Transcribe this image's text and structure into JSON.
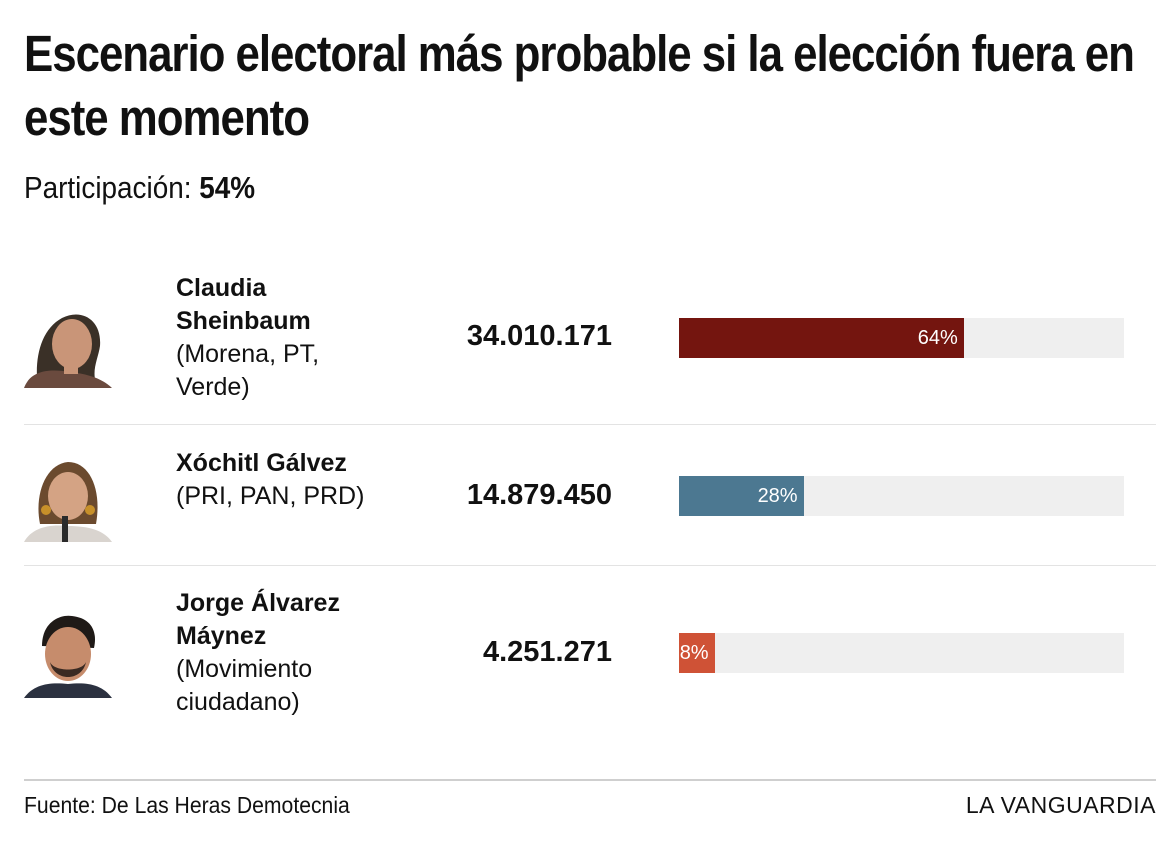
{
  "header": {
    "title": "Escenario electoral más probable si la elección fuera en este momento",
    "participation_label": "Participación: ",
    "participation_value": "54%"
  },
  "chart_data": {
    "type": "bar",
    "orientation": "horizontal",
    "categories": [
      "Claudia Sheinbaum",
      "Xóchitl Gálvez",
      "Jorge Álvarez Máynez"
    ],
    "values": [
      64,
      28,
      8
    ],
    "votes": [
      "34.010.171",
      "14.879.450",
      "4.251.271"
    ],
    "parties": [
      "(Morena, PT, Verde)",
      "(PRI, PAN, PRD)",
      "(Movimiento ciudadano)"
    ],
    "value_labels": [
      "64%",
      "28%",
      "8%"
    ],
    "colors": [
      "#74150f",
      "#4c7891",
      "#cf5236"
    ],
    "xlim": [
      0,
      100
    ]
  },
  "footer": {
    "source": "Fuente: De Las Heras Demotecnia",
    "brand": "LA VANGUARDIA"
  }
}
